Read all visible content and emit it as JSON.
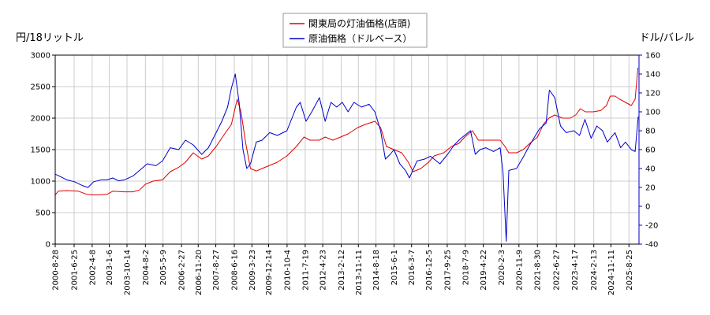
{
  "chart_data": {
    "type": "line",
    "left_axis_title": "円/18リットル",
    "right_axis_title": "ドル/バレル",
    "left_ylim": [
      0,
      3000
    ],
    "left_ticks": [
      "0",
      "500",
      "1000",
      "1500",
      "2000",
      "2500",
      "3000"
    ],
    "right_ylim": [
      -40,
      160
    ],
    "right_ticks": [
      "-40",
      "-20",
      "0",
      "20",
      "40",
      "60",
      "80",
      "100",
      "120",
      "140",
      "160"
    ],
    "x_range": [
      "2000-08-28",
      "2026-02-01"
    ],
    "x_ticks": [
      "2000-8-28",
      "2001-6-25",
      "2002-4-8",
      "2003-1-6",
      "2003-10-14",
      "2004-8-2",
      "2005-5-9",
      "2006-2-27",
      "2006-11-20",
      "2007-8-27",
      "2008-6-16",
      "2009-3-23",
      "2009-12-14",
      "2010-10-4",
      "2011-7-19",
      "2012-4-23",
      "2013-2-12",
      "2013-11-11",
      "2014-8-18",
      "2015-6-1",
      "2016-3-7",
      "2016-12-5",
      "2017-9-25",
      "2018-7-9",
      "2019-4-22",
      "2020-2-3",
      "2020-11-9",
      "2021-8-30",
      "2022-6-27",
      "2023-4-17",
      "2024-2-13",
      "2024-11-11",
      "2025-8-25"
    ],
    "grid": true,
    "legend_position": "top-center",
    "series": [
      {
        "name": "関東局の灯油価格(店頭)",
        "color": "#e00000",
        "axis": "left",
        "points": [
          [
            "2000-08-28",
            780
          ],
          [
            "2000-10-15",
            840
          ],
          [
            "2001-03-01",
            850
          ],
          [
            "2001-09-01",
            840
          ],
          [
            "2002-01-15",
            790
          ],
          [
            "2002-06-01",
            780
          ],
          [
            "2002-12-01",
            790
          ],
          [
            "2003-03-01",
            840
          ],
          [
            "2003-09-01",
            830
          ],
          [
            "2004-01-15",
            830
          ],
          [
            "2004-05-01",
            860
          ],
          [
            "2004-08-01",
            950
          ],
          [
            "2004-12-01",
            1000
          ],
          [
            "2005-05-01",
            1020
          ],
          [
            "2005-09-01",
            1150
          ],
          [
            "2006-01-15",
            1220
          ],
          [
            "2006-05-01",
            1300
          ],
          [
            "2006-09-01",
            1450
          ],
          [
            "2007-01-15",
            1350
          ],
          [
            "2007-05-01",
            1400
          ],
          [
            "2007-09-01",
            1550
          ],
          [
            "2008-01-15",
            1750
          ],
          [
            "2008-05-01",
            1900
          ],
          [
            "2008-08-01",
            2300
          ],
          [
            "2008-10-01",
            2100
          ],
          [
            "2008-12-15",
            1600
          ],
          [
            "2009-03-01",
            1200
          ],
          [
            "2009-06-01",
            1160
          ],
          [
            "2009-09-01",
            1200
          ],
          [
            "2010-01-01",
            1250
          ],
          [
            "2010-05-01",
            1300
          ],
          [
            "2010-10-01",
            1400
          ],
          [
            "2011-03-01",
            1550
          ],
          [
            "2011-07-01",
            1700
          ],
          [
            "2011-10-01",
            1650
          ],
          [
            "2012-03-01",
            1650
          ],
          [
            "2012-06-01",
            1700
          ],
          [
            "2012-10-01",
            1650
          ],
          [
            "2013-02-01",
            1700
          ],
          [
            "2013-06-01",
            1750
          ],
          [
            "2013-11-01",
            1850
          ],
          [
            "2014-03-01",
            1900
          ],
          [
            "2014-08-01",
            1950
          ],
          [
            "2014-11-01",
            1850
          ],
          [
            "2015-02-01",
            1550
          ],
          [
            "2015-06-01",
            1500
          ],
          [
            "2015-10-01",
            1450
          ],
          [
            "2016-01-15",
            1300
          ],
          [
            "2016-04-01",
            1150
          ],
          [
            "2016-08-01",
            1200
          ],
          [
            "2016-12-01",
            1300
          ],
          [
            "2017-03-01",
            1400
          ],
          [
            "2017-08-01",
            1450
          ],
          [
            "2017-12-01",
            1550
          ],
          [
            "2018-04-01",
            1600
          ],
          [
            "2018-07-01",
            1700
          ],
          [
            "2018-11-01",
            1800
          ],
          [
            "2019-02-01",
            1650
          ],
          [
            "2019-06-01",
            1650
          ],
          [
            "2019-10-01",
            1650
          ],
          [
            "2020-01-15",
            1650
          ],
          [
            "2020-04-01",
            1550
          ],
          [
            "2020-06-01",
            1450
          ],
          [
            "2020-10-01",
            1450
          ],
          [
            "2021-01-15",
            1500
          ],
          [
            "2021-05-01",
            1600
          ],
          [
            "2021-09-01",
            1700
          ],
          [
            "2021-12-01",
            1900
          ],
          [
            "2022-03-01",
            2000
          ],
          [
            "2022-06-01",
            2050
          ],
          [
            "2022-10-01",
            2000
          ],
          [
            "2023-02-01",
            2000
          ],
          [
            "2023-05-01",
            2050
          ],
          [
            "2023-07-15",
            2150
          ],
          [
            "2023-10-01",
            2100
          ],
          [
            "2024-02-01",
            2100
          ],
          [
            "2024-06-01",
            2120
          ],
          [
            "2024-09-01",
            2200
          ],
          [
            "2024-11-01",
            2350
          ],
          [
            "2025-01-15",
            2350
          ],
          [
            "2025-04-01",
            2300
          ],
          [
            "2025-07-01",
            2250
          ],
          [
            "2025-10-01",
            2200
          ],
          [
            "2025-12-01",
            2300
          ],
          [
            "2026-01-15",
            2800
          ]
        ]
      },
      {
        "name": "原油価格（ドルベース）",
        "color": "#0000cc",
        "axis": "right",
        "points": [
          [
            "2000-08-28",
            34
          ],
          [
            "2000-11-01",
            32
          ],
          [
            "2001-03-01",
            28
          ],
          [
            "2001-07-01",
            26
          ],
          [
            "2001-11-01",
            22
          ],
          [
            "2002-02-01",
            20
          ],
          [
            "2002-05-01",
            26
          ],
          [
            "2002-09-01",
            28
          ],
          [
            "2002-12-01",
            28
          ],
          [
            "2003-03-01",
            30
          ],
          [
            "2003-06-01",
            27
          ],
          [
            "2003-09-01",
            28
          ],
          [
            "2004-01-15",
            32
          ],
          [
            "2004-05-01",
            38
          ],
          [
            "2004-09-01",
            45
          ],
          [
            "2005-01-15",
            43
          ],
          [
            "2005-05-01",
            48
          ],
          [
            "2005-09-01",
            62
          ],
          [
            "2006-01-15",
            60
          ],
          [
            "2006-05-01",
            70
          ],
          [
            "2006-09-01",
            65
          ],
          [
            "2007-01-15",
            55
          ],
          [
            "2007-05-01",
            62
          ],
          [
            "2007-09-01",
            78
          ],
          [
            "2007-12-01",
            90
          ],
          [
            "2008-03-01",
            105
          ],
          [
            "2008-05-01",
            125
          ],
          [
            "2008-07-01",
            140
          ],
          [
            "2008-09-01",
            110
          ],
          [
            "2008-11-01",
            60
          ],
          [
            "2009-01-01",
            40
          ],
          [
            "2009-03-01",
            45
          ],
          [
            "2009-06-01",
            68
          ],
          [
            "2009-09-01",
            70
          ],
          [
            "2010-01-01",
            78
          ],
          [
            "2010-05-01",
            75
          ],
          [
            "2010-10-01",
            80
          ],
          [
            "2011-03-01",
            105
          ],
          [
            "2011-05-01",
            110
          ],
          [
            "2011-08-01",
            90
          ],
          [
            "2011-11-01",
            100
          ],
          [
            "2012-03-01",
            115
          ],
          [
            "2012-06-01",
            90
          ],
          [
            "2012-09-01",
            110
          ],
          [
            "2012-12-01",
            105
          ],
          [
            "2013-03-01",
            110
          ],
          [
            "2013-06-01",
            100
          ],
          [
            "2013-09-01",
            110
          ],
          [
            "2014-01-01",
            105
          ],
          [
            "2014-05-01",
            108
          ],
          [
            "2014-08-01",
            100
          ],
          [
            "2014-11-01",
            80
          ],
          [
            "2015-01-15",
            50
          ],
          [
            "2015-04-01",
            55
          ],
          [
            "2015-06-01",
            60
          ],
          [
            "2015-09-01",
            45
          ],
          [
            "2015-12-01",
            38
          ],
          [
            "2016-02-01",
            30
          ],
          [
            "2016-06-01",
            48
          ],
          [
            "2016-10-01",
            50
          ],
          [
            "2017-01-01",
            53
          ],
          [
            "2017-06-01",
            45
          ],
          [
            "2017-10-01",
            55
          ],
          [
            "2018-01-15",
            65
          ],
          [
            "2018-05-01",
            72
          ],
          [
            "2018-10-01",
            80
          ],
          [
            "2018-12-15",
            55
          ],
          [
            "2019-03-01",
            60
          ],
          [
            "2019-06-01",
            62
          ],
          [
            "2019-10-01",
            58
          ],
          [
            "2020-01-15",
            62
          ],
          [
            "2020-03-01",
            35
          ],
          [
            "2020-04-20",
            -37
          ],
          [
            "2020-06-01",
            38
          ],
          [
            "2020-10-01",
            40
          ],
          [
            "2021-01-15",
            52
          ],
          [
            "2021-05-01",
            65
          ],
          [
            "2021-10-01",
            82
          ],
          [
            "2022-01-15",
            88
          ],
          [
            "2022-03-08",
            123
          ],
          [
            "2022-06-01",
            115
          ],
          [
            "2022-09-01",
            85
          ],
          [
            "2022-12-01",
            78
          ],
          [
            "2023-04-01",
            80
          ],
          [
            "2023-07-01",
            75
          ],
          [
            "2023-09-25",
            92
          ],
          [
            "2024-01-01",
            72
          ],
          [
            "2024-04-01",
            85
          ],
          [
            "2024-07-01",
            80
          ],
          [
            "2024-09-15",
            68
          ],
          [
            "2025-01-15",
            78
          ],
          [
            "2025-04-15",
            62
          ],
          [
            "2025-07-01",
            68
          ],
          [
            "2025-10-01",
            60
          ],
          [
            "2025-12-01",
            58
          ],
          [
            "2026-01-20",
            95
          ]
        ]
      }
    ]
  }
}
